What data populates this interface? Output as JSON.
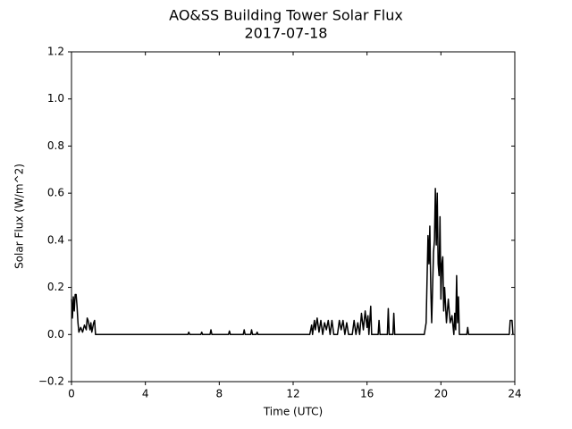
{
  "chart_data": {
    "type": "line",
    "title": "AO&SS Building Tower Solar Flux",
    "subtitle": "2017-07-18",
    "x_label": "Time (UTC)",
    "y_label": "Solar Flux (W/m^2)",
    "xlim": [
      0,
      24
    ],
    "ylim": [
      -0.2,
      1.2
    ],
    "xticks": [
      0,
      4,
      8,
      12,
      16,
      20,
      24
    ],
    "yticks": [
      {
        "value": -0.2,
        "label": "−0.2"
      },
      {
        "value": 0,
        "label": "0.0"
      },
      0.2,
      0.4,
      0.6,
      0.8,
      {
        "value": 1,
        "label": "1.0"
      },
      1.2
    ],
    "grid": false,
    "series": [
      {
        "name": "Solar Flux",
        "color": "#000000",
        "x": [
          0,
          0.05,
          0.1,
          0.15,
          0.2,
          0.25,
          0.3,
          0.35,
          0.4,
          0.5,
          0.6,
          0.7,
          0.8,
          0.85,
          0.9,
          1.0,
          1.05,
          1.1,
          1.2,
          1.25,
          1.3,
          1.5,
          6.3,
          6.35,
          6.4,
          7.0,
          7.05,
          7.1,
          7.5,
          7.55,
          7.6,
          8.5,
          8.55,
          8.6,
          9.3,
          9.35,
          9.4,
          9.7,
          9.75,
          9.8,
          10.0,
          10.05,
          10.1,
          12.9,
          13.0,
          13.05,
          13.15,
          13.2,
          13.3,
          13.4,
          13.5,
          13.6,
          13.7,
          13.8,
          13.9,
          14.0,
          14.1,
          14.2,
          14.4,
          14.5,
          14.6,
          14.7,
          14.8,
          14.9,
          15.0,
          15.2,
          15.3,
          15.4,
          15.5,
          15.6,
          15.7,
          15.8,
          15.9,
          16.0,
          16.05,
          16.1,
          16.2,
          16.25,
          16.6,
          16.65,
          16.7,
          17.1,
          17.15,
          17.2,
          17.4,
          17.45,
          17.5,
          19.1,
          19.2,
          19.3,
          19.35,
          19.4,
          19.45,
          19.5,
          19.6,
          19.65,
          19.7,
          19.75,
          19.8,
          19.85,
          19.9,
          19.95,
          20.0,
          20.05,
          20.1,
          20.15,
          20.2,
          20.3,
          20.4,
          20.5,
          20.6,
          20.7,
          20.75,
          20.8,
          20.85,
          20.9,
          20.95,
          21.0,
          21.4,
          21.45,
          21.5,
          23.7,
          23.75,
          23.85,
          23.9
        ],
        "values": [
          0.15,
          0.07,
          0.16,
          0.1,
          0.17,
          0.17,
          0.12,
          0.05,
          0.01,
          0.03,
          0.01,
          0.04,
          0.02,
          0.07,
          0.06,
          0.02,
          0.05,
          0.01,
          0.05,
          0.06,
          0,
          0,
          0,
          0.01,
          0,
          0,
          0.01,
          0,
          0,
          0.02,
          0,
          0,
          0.015,
          0,
          0,
          0.02,
          0,
          0,
          0.02,
          0,
          0,
          0.01,
          0,
          0,
          0.04,
          0,
          0.06,
          0.02,
          0.07,
          0.01,
          0.06,
          0,
          0.05,
          0.02,
          0.06,
          0,
          0.06,
          0,
          0,
          0.06,
          0.02,
          0.06,
          0,
          0.05,
          0,
          0,
          0.06,
          0,
          0.05,
          0,
          0.09,
          0.02,
          0.1,
          0.03,
          0.08,
          0,
          0.12,
          0,
          0,
          0.06,
          0,
          0,
          0.11,
          0,
          0,
          0.09,
          0,
          0,
          0.05,
          0.42,
          0.3,
          0.46,
          0.2,
          0.05,
          0.35,
          0.4,
          0.62,
          0.38,
          0.6,
          0.3,
          0.25,
          0.5,
          0.15,
          0.3,
          0.33,
          0.1,
          0.2,
          0.05,
          0.15,
          0.05,
          0.08,
          0,
          0.09,
          0.02,
          0.25,
          0.05,
          0.16,
          0,
          0,
          0.03,
          0,
          0,
          0.06,
          0.06,
          0
        ]
      }
    ]
  }
}
